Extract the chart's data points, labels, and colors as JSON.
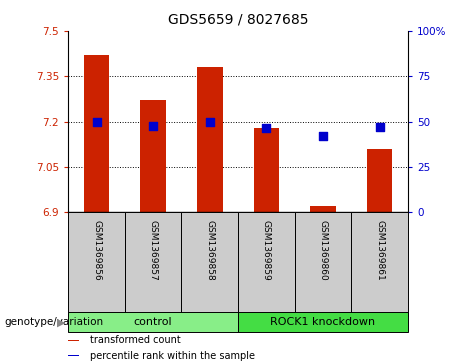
{
  "title": "GDS5659 / 8027685",
  "samples": [
    "GSM1369856",
    "GSM1369857",
    "GSM1369858",
    "GSM1369859",
    "GSM1369860",
    "GSM1369861"
  ],
  "bar_values": [
    7.42,
    7.27,
    7.38,
    7.18,
    6.92,
    7.11
  ],
  "dot_values": [
    50.0,
    47.5,
    50.0,
    46.5,
    42.0,
    47.0
  ],
  "bar_color": "#cc2200",
  "dot_color": "#0000cc",
  "bar_bottom": 6.9,
  "ylim_left": [
    6.9,
    7.5
  ],
  "ylim_right": [
    0,
    100
  ],
  "yticks_left": [
    6.9,
    7.05,
    7.2,
    7.35,
    7.5
  ],
  "yticks_right": [
    0,
    25,
    50,
    75,
    100
  ],
  "ytick_labels_left": [
    "6.9",
    "7.05",
    "7.2",
    "7.35",
    "7.5"
  ],
  "ytick_labels_right": [
    "0",
    "25",
    "50",
    "75",
    "100%"
  ],
  "groups": [
    {
      "label": "control",
      "indices": [
        0,
        1,
        2
      ],
      "color": "#88ee88"
    },
    {
      "label": "ROCK1 knockdown",
      "indices": [
        3,
        4,
        5
      ],
      "color": "#44dd44"
    }
  ],
  "group_row_label": "genotype/variation",
  "legend_items": [
    {
      "color": "#cc2200",
      "label": "transformed count"
    },
    {
      "color": "#0000cc",
      "label": "percentile rank within the sample"
    }
  ],
  "xlabel_color": "#cc2200",
  "ylabel_right_color": "#0000cc",
  "sample_box_color": "#cccccc",
  "bar_width": 0.45
}
